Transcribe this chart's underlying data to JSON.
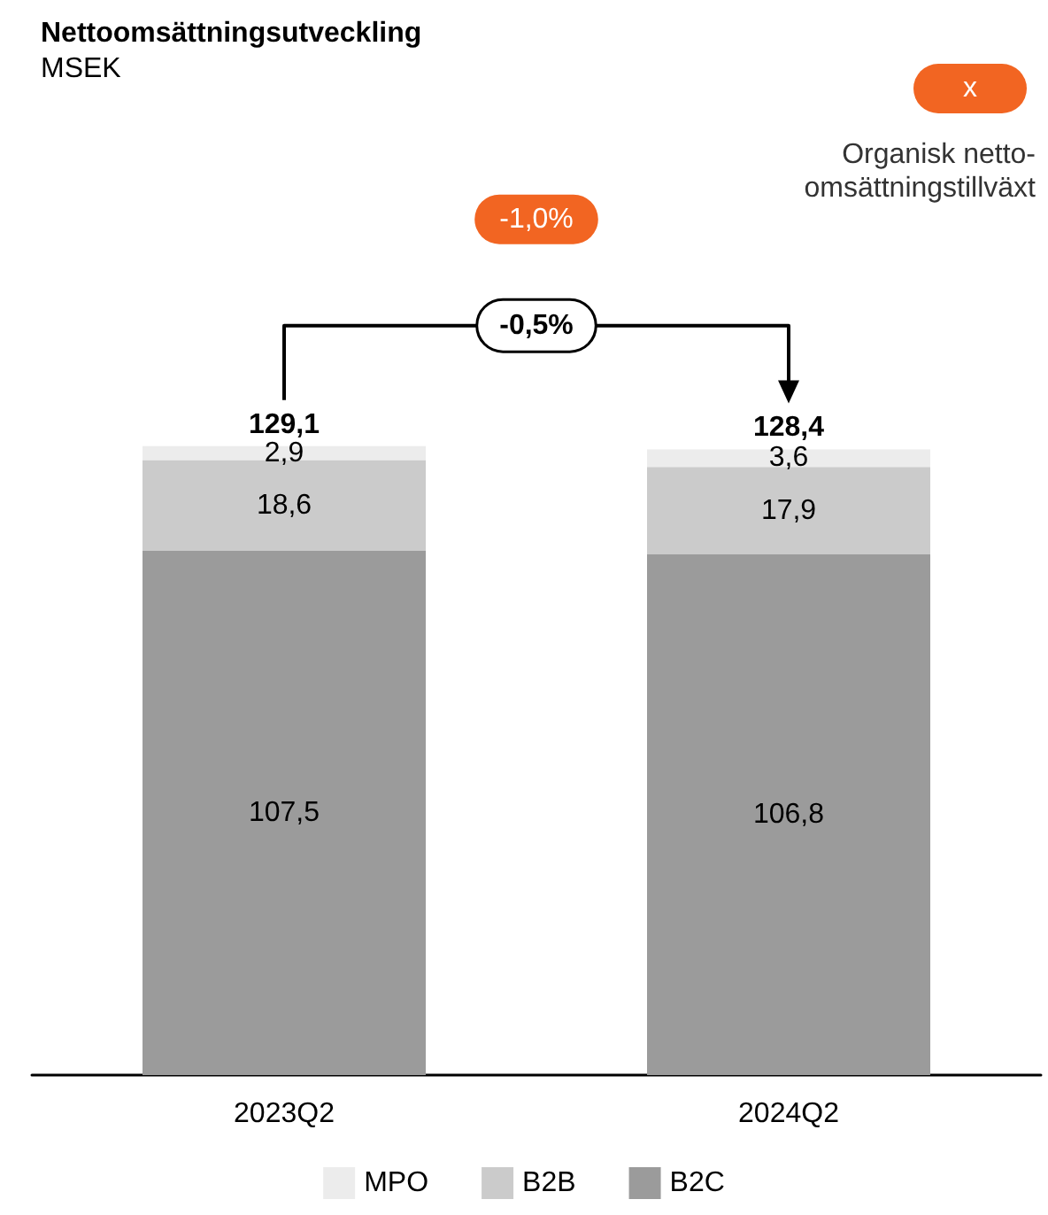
{
  "chart_data": {
    "type": "bar",
    "title": "Nettoomsättningsutveckling",
    "subtitle": "MSEK",
    "categories": [
      "2023Q2",
      "2024Q2"
    ],
    "stacked": true,
    "legend": "bottom",
    "grid": false,
    "series": [
      {
        "name": "B2C",
        "color": "#9b9b9b",
        "values": [
          107.5,
          106.8
        ],
        "value_labels": [
          "107,5",
          "106,8"
        ]
      },
      {
        "name": "B2B",
        "color": "#cbcbcb",
        "values": [
          18.6,
          17.9
        ],
        "value_labels": [
          "18,6",
          "17,9"
        ]
      },
      {
        "name": "MPO",
        "color": "#ececec",
        "values": [
          2.9,
          3.6
        ],
        "value_labels": [
          "2,9",
          "3,6"
        ]
      }
    ],
    "totals": [
      "129,1",
      "128,4"
    ],
    "annotations": [
      "-1,0%",
      "-0,5%",
      "x",
      "Organisk netto-omsättningstillväxt"
    ]
  }
}
